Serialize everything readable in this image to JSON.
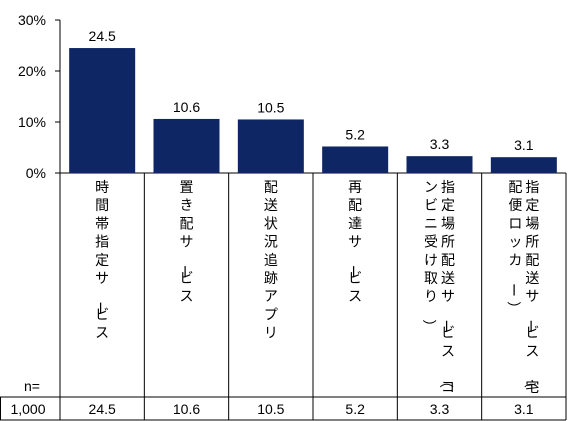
{
  "chart_data": {
    "type": "bar",
    "title": "",
    "xlabel": "",
    "ylabel": "",
    "ylim": [
      0,
      30
    ],
    "yticks": [
      "0%",
      "10%",
      "20%",
      "30%"
    ],
    "grid": false,
    "color": "#0e2663",
    "categories": [
      "時間帯指定サービス",
      "置き配サービス",
      "配送状況追跡アプリ",
      "再配達サービス",
      "指定場所配送サービス（コンビニ受け取り）",
      "指定場所配送サービス（宅配便ロッカー）"
    ],
    "values": [
      24.5,
      10.6,
      10.5,
      5.2,
      3.3,
      3.1
    ],
    "data_labels": [
      "24.5",
      "10.6",
      "10.5",
      "5.2",
      "3.3",
      "3.1"
    ]
  },
  "table": {
    "n_label": "n=",
    "n_value": "1,000",
    "row_values": [
      "24.5",
      "10.6",
      "10.5",
      "5.2",
      "3.3",
      "3.1"
    ]
  }
}
